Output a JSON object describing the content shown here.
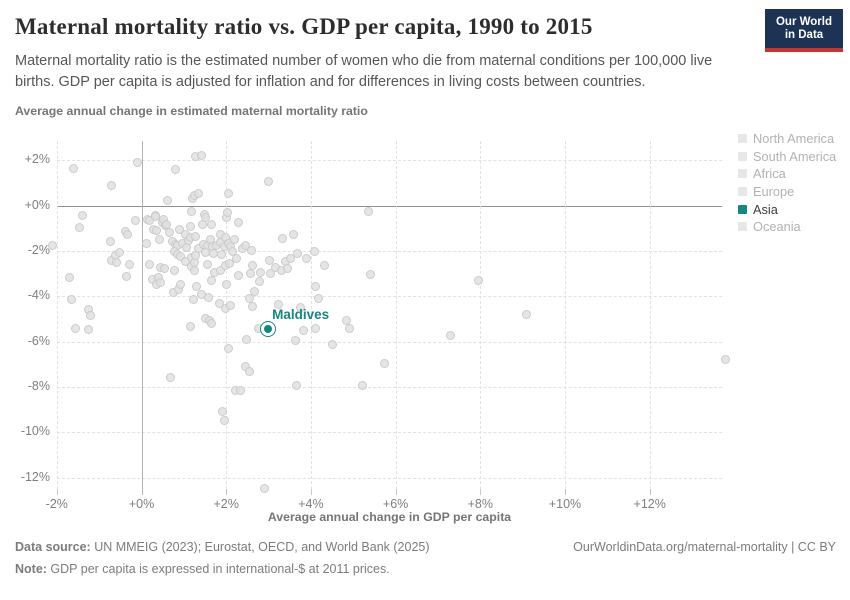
{
  "header": {
    "title": "Maternal mortality ratio vs. GDP per capita, 1990 to 2015",
    "logo": {
      "line1": "Our World",
      "line2": "in Data"
    }
  },
  "subtitle": "Maternal mortality ratio is the estimated number of women who die from maternal conditions per 100,000 live births. GDP per capita is adjusted for inflation and for differences in living costs between countries.",
  "legend": {
    "items": [
      {
        "label": "North America",
        "active": false
      },
      {
        "label": "South America",
        "active": false
      },
      {
        "label": "Africa",
        "active": false
      },
      {
        "label": "Europe",
        "active": false
      },
      {
        "label": "Asia",
        "active": true
      },
      {
        "label": "Oceania",
        "active": false
      }
    ]
  },
  "colors": {
    "highlight_teal": "#12897f",
    "inactive_point": "#e0e0e0",
    "grid": "#e2e2e2",
    "logo_navy": "#1d3356",
    "logo_red": "#cf3030"
  },
  "chart_data": {
    "type": "scatter",
    "title": "Maternal mortality ratio vs. GDP per capita, 1990 to 2015",
    "xlabel": "Average annual change in GDP per capita",
    "ylabel": "Average annual change in estimated maternal mortality ratio",
    "xlim": [
      -2.2,
      14.2
    ],
    "ylim": [
      -12.8,
      2.6
    ],
    "grid": true,
    "legend_position": "right",
    "x_ticks": [
      {
        "v": -2,
        "label": "-2%"
      },
      {
        "v": 0,
        "label": "+0%"
      },
      {
        "v": 2,
        "label": "+2%"
      },
      {
        "v": 4,
        "label": "+4%"
      },
      {
        "v": 6,
        "label": "+6%"
      },
      {
        "v": 8,
        "label": "+8%"
      },
      {
        "v": 10,
        "label": "+10%"
      },
      {
        "v": 12,
        "label": "+12%"
      }
    ],
    "y_ticks": [
      {
        "v": 2,
        "label": "+2%"
      },
      {
        "v": 0,
        "label": "+0%"
      },
      {
        "v": -2,
        "label": "-2%"
      },
      {
        "v": -4,
        "label": "-4%"
      },
      {
        "v": -6,
        "label": "-6%"
      },
      {
        "v": -8,
        "label": "-8%"
      },
      {
        "v": -10,
        "label": "-10%"
      },
      {
        "v": -12,
        "label": "-12%"
      }
    ],
    "highlight": {
      "name": "Maldives",
      "x": 2.99,
      "y": -5.46,
      "region": "Asia"
    },
    "points": [
      [
        -1.6,
        1.65
      ],
      [
        -0.7,
        0.87
      ],
      [
        -0.1,
        1.9
      ],
      [
        0.81,
        1.58
      ],
      [
        1.28,
        2.16
      ],
      [
        1.42,
        2.21
      ],
      [
        2.99,
        1.06
      ],
      [
        0.61,
        0.25
      ],
      [
        1.2,
        0.33
      ],
      [
        1.26,
        0.44
      ],
      [
        1.35,
        0.55
      ],
      [
        2.06,
        0.52
      ],
      [
        -1.4,
        -0.44
      ],
      [
        -1.47,
        -0.95
      ],
      [
        -0.13,
        -0.66
      ],
      [
        0.13,
        -0.63
      ],
      [
        0.18,
        -0.66
      ],
      [
        0.32,
        -0.45
      ],
      [
        0.34,
        -0.49
      ],
      [
        0.5,
        -0.73
      ],
      [
        0.52,
        -0.63
      ],
      [
        0.56,
        -0.88
      ],
      [
        0.6,
        -0.85
      ],
      [
        1.15,
        -0.93
      ],
      [
        1.19,
        -0.26
      ],
      [
        1.44,
        -0.85
      ],
      [
        1.48,
        -0.41
      ],
      [
        1.5,
        -0.51
      ],
      [
        1.65,
        -0.82
      ],
      [
        2.01,
        -0.51
      ],
      [
        2.03,
        -0.29
      ],
      [
        2.3,
        -0.73
      ],
      [
        5.37,
        -0.26
      ],
      [
        -2.1,
        -1.74
      ],
      [
        -0.74,
        -1.59
      ],
      [
        -0.37,
        -1.15
      ],
      [
        -0.33,
        -1.29
      ],
      [
        0.12,
        -1.66
      ],
      [
        0.28,
        -1.07
      ],
      [
        0.35,
        -1.1
      ],
      [
        0.42,
        -1.51
      ],
      [
        0.65,
        -1.2
      ],
      [
        0.73,
        -1.59
      ],
      [
        0.81,
        -1.7
      ],
      [
        0.86,
        -1.77
      ],
      [
        0.9,
        -1.05
      ],
      [
        0.96,
        -1.66
      ],
      [
        1.05,
        -1.29
      ],
      [
        1.07,
        -1.85
      ],
      [
        1.1,
        -1.55
      ],
      [
        1.16,
        -1.41
      ],
      [
        1.27,
        -1.37
      ],
      [
        1.35,
        -1.9
      ],
      [
        1.46,
        -1.7
      ],
      [
        1.56,
        -1.77
      ],
      [
        1.62,
        -1.5
      ],
      [
        1.68,
        -1.81
      ],
      [
        1.78,
        -1.74
      ],
      [
        1.86,
        -1.29
      ],
      [
        1.87,
        -1.62
      ],
      [
        1.95,
        -1.81
      ],
      [
        1.99,
        -1.41
      ],
      [
        2.05,
        -1.66
      ],
      [
        2.09,
        -1.81
      ],
      [
        2.2,
        -1.5
      ],
      [
        2.38,
        -1.91
      ],
      [
        2.46,
        -1.74
      ],
      [
        2.6,
        -1.96
      ],
      [
        3.33,
        -1.47
      ],
      [
        3.59,
        -1.25
      ],
      [
        -0.7,
        -2.44
      ],
      [
        -0.62,
        -2.18
      ],
      [
        -0.59,
        -2.5
      ],
      [
        -0.51,
        -2.06
      ],
      [
        -0.28,
        -2.59
      ],
      [
        0.2,
        -2.59
      ],
      [
        0.44,
        -2.74
      ],
      [
        0.55,
        -2.79
      ],
      [
        0.77,
        -2.88
      ],
      [
        0.79,
        -2.03
      ],
      [
        0.86,
        -2.15
      ],
      [
        0.93,
        -2.25
      ],
      [
        1.05,
        -2.45
      ],
      [
        1.18,
        -2.3
      ],
      [
        1.18,
        -2.69
      ],
      [
        1.25,
        -2.5
      ],
      [
        1.26,
        -2.88
      ],
      [
        1.28,
        -2.21
      ],
      [
        1.5,
        -2.05
      ],
      [
        1.55,
        -2.6
      ],
      [
        1.7,
        -2.1
      ],
      [
        1.73,
        -2.94
      ],
      [
        1.86,
        -2.88
      ],
      [
        1.9,
        -2.15
      ],
      [
        1.99,
        -2.65
      ],
      [
        2.07,
        -2.54
      ],
      [
        2.15,
        -2.0
      ],
      [
        2.25,
        -2.35
      ],
      [
        2.62,
        -2.62
      ],
      [
        2.58,
        -2.98
      ],
      [
        2.82,
        -2.94
      ],
      [
        3.03,
        -2.44
      ],
      [
        3.04,
        -2.98
      ],
      [
        3.17,
        -2.74
      ],
      [
        3.31,
        -2.84
      ],
      [
        3.39,
        -2.47
      ],
      [
        3.45,
        -2.79
      ],
      [
        3.53,
        -2.35
      ],
      [
        3.68,
        -2.1
      ],
      [
        3.9,
        -2.35
      ],
      [
        4.08,
        -2.0
      ],
      [
        4.33,
        -2.62
      ],
      [
        -1.69,
        -3.18
      ],
      [
        -0.35,
        -3.13
      ],
      [
        0.26,
        -3.24
      ],
      [
        0.35,
        -3.47
      ],
      [
        0.4,
        -3.18
      ],
      [
        0.46,
        -3.38
      ],
      [
        0.75,
        -3.82
      ],
      [
        0.87,
        -3.72
      ],
      [
        0.91,
        -3.47
      ],
      [
        1.3,
        -3.55
      ],
      [
        1.42,
        -3.91
      ],
      [
        1.65,
        -3.3
      ],
      [
        2.0,
        -3.5
      ],
      [
        2.3,
        -3.1
      ],
      [
        2.66,
        -3.8
      ],
      [
        2.78,
        -3.36
      ],
      [
        4.1,
        -3.58
      ],
      [
        5.4,
        -3.03
      ],
      [
        7.95,
        -3.31
      ],
      [
        -1.65,
        -4.12
      ],
      [
        -1.24,
        -4.6
      ],
      [
        -1.2,
        -4.83
      ],
      [
        1.22,
        -4.12
      ],
      [
        1.52,
        -4.97
      ],
      [
        1.58,
        -4.06
      ],
      [
        1.83,
        -4.31
      ],
      [
        1.99,
        -4.53
      ],
      [
        2.11,
        -4.41
      ],
      [
        2.54,
        -4.09
      ],
      [
        2.62,
        -4.46
      ],
      [
        3.23,
        -4.38
      ],
      [
        3.76,
        -4.5
      ],
      [
        4.19,
        -4.09
      ],
      [
        9.1,
        -4.79
      ],
      [
        -1.55,
        -5.41
      ],
      [
        -1.25,
        -5.46
      ],
      [
        1.16,
        -5.34
      ],
      [
        1.6,
        -5.09
      ],
      [
        1.66,
        -5.19
      ],
      [
        2.48,
        -5.89
      ],
      [
        2.77,
        -5.4
      ],
      [
        3.63,
        -5.97
      ],
      [
        3.83,
        -5.53
      ],
      [
        4.12,
        -5.41
      ],
      [
        4.84,
        -5.05
      ],
      [
        4.9,
        -5.41
      ],
      [
        7.29,
        -5.75
      ],
      [
        2.05,
        -6.3
      ],
      [
        4.52,
        -6.15
      ],
      [
        5.73,
        -6.96
      ],
      [
        13.78,
        -6.79
      ],
      [
        2.45,
        -7.11
      ],
      [
        2.56,
        -7.33
      ],
      [
        0.68,
        -7.59
      ],
      [
        3.66,
        -7.95
      ],
      [
        5.23,
        -7.95
      ],
      [
        2.21,
        -8.18
      ],
      [
        2.33,
        -8.18
      ],
      [
        1.91,
        -9.09
      ],
      [
        1.97,
        -9.5
      ],
      [
        2.9,
        -12.5
      ]
    ]
  },
  "footer": {
    "source_label": "Data source:",
    "source_text": " UN MMEIG (2023); Eurostat, OECD, and World Bank (2025)",
    "note_label": "Note:",
    "note_text": " GDP per capita is expressed in international-$ at 2011 prices.",
    "right_text": "OurWorldinData.org/maternal-mortality | CC BY"
  }
}
